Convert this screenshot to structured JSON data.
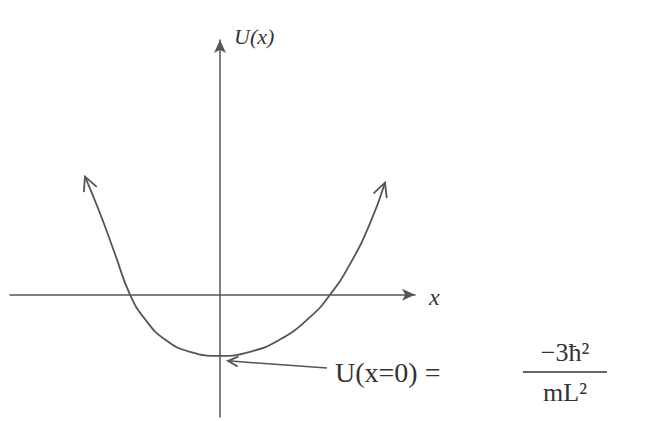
{
  "chart_data": {
    "type": "line",
    "x": [
      -2.7,
      -2.4,
      -2.1,
      -1.8,
      -1.5,
      -1.1,
      -0.6,
      0,
      0.6,
      1.2,
      1.8,
      2.2,
      2.6,
      3.0,
      3.3
    ],
    "values": [
      5.8,
      4.0,
      2.0,
      0,
      -1.2,
      -2.2,
      -2.8,
      -3,
      -2.8,
      -2.2,
      -1.1,
      0,
      1.5,
      3.5,
      5.5
    ],
    "xlim": [
      -4.2,
      3.9
    ],
    "ylim": [
      -6,
      12.5
    ],
    "x_label": "x",
    "y_label": "U(x)",
    "color": "#555555",
    "grid": false,
    "tick_labels": false,
    "annotation": {
      "text": "U(x=0) =",
      "numerator": "−3ħ²",
      "denominator": "mL²",
      "xy": [
        0,
        -3
      ]
    }
  }
}
